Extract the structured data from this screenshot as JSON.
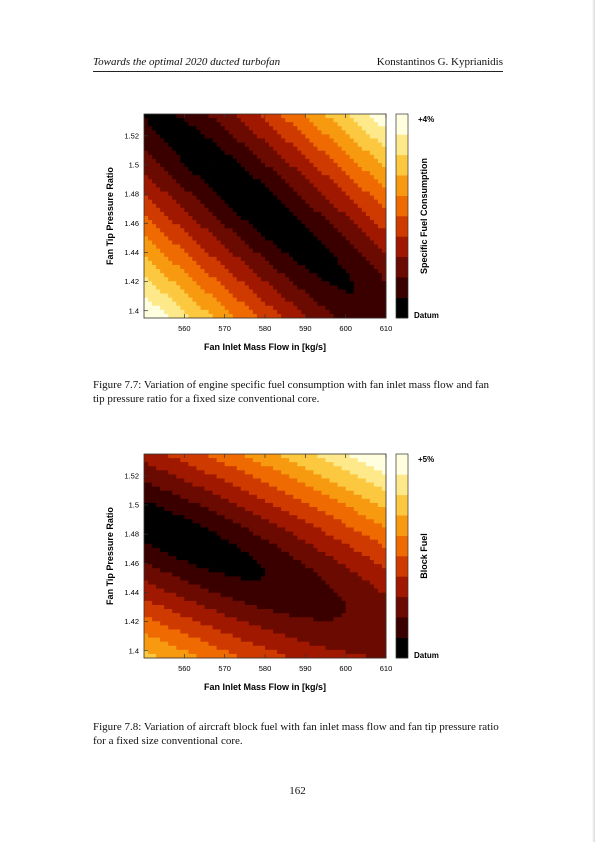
{
  "header": {
    "title": "Towards the optimal 2020 ducted turbofan",
    "author": "Konstantinos G. Kyprianidis"
  },
  "figures": [
    {
      "caption": "Figure 7.7: Variation of engine specific fuel consumption with fan inlet mass flow and fan tip pressure ratio for a fixed size conventional core.",
      "chart_data": {
        "type": "heatmap",
        "xlabel": "Fan Inlet Mass Flow in [kg/s]",
        "ylabel": "Fan Tip Pressure Ratio",
        "xlim": [
          550,
          610
        ],
        "ylim": [
          1.395,
          1.535
        ],
        "x_ticks": [
          "560",
          "570",
          "580",
          "590",
          "600",
          "610"
        ],
        "y_ticks": [
          "1.4",
          "1.42",
          "1.44",
          "1.46",
          "1.48",
          "1.5",
          "1.52"
        ],
        "colorbar_label": "Specific Fuel Consumption",
        "colorbar_max": "+4%",
        "colorbar_min": "Datum",
        "colormap": [
          "#000000",
          "#3a0000",
          "#6a0a00",
          "#a01800",
          "#cf3a00",
          "#ef6a00",
          "#f79a10",
          "#fbc840",
          "#fde98a",
          "#ffffe0"
        ],
        "optimum": {
          "x": 575,
          "y": 1.48,
          "tilt_per_kgs": -0.0024
        }
      }
    },
    {
      "caption": "Figure 7.8: Variation of aircraft block fuel with fan inlet mass flow and fan tip pressure ratio for a fixed size conventional core.",
      "chart_data": {
        "type": "heatmap",
        "xlabel": "Fan Inlet Mass Flow in [kg/s]",
        "ylabel": "Fan Tip Pressure Ratio",
        "xlim": [
          550,
          610
        ],
        "ylim": [
          1.395,
          1.535
        ],
        "x_ticks": [
          "560",
          "570",
          "580",
          "590",
          "600",
          "610"
        ],
        "y_ticks": [
          "1.4",
          "1.42",
          "1.44",
          "1.46",
          "1.48",
          "1.5",
          "1.52"
        ],
        "colorbar_label": "Block Fuel",
        "colorbar_max": "+5%",
        "colorbar_min": "Datum",
        "colormap": [
          "#000000",
          "#3a0000",
          "#6a0a00",
          "#a01800",
          "#cf3a00",
          "#ef6a00",
          "#f79a10",
          "#fbc840",
          "#fde98a",
          "#ffffe0"
        ],
        "optimum": {
          "x": 557,
          "y": 1.48,
          "tilt_per_kgs": -0.0012
        }
      }
    }
  ],
  "page_number": "162"
}
